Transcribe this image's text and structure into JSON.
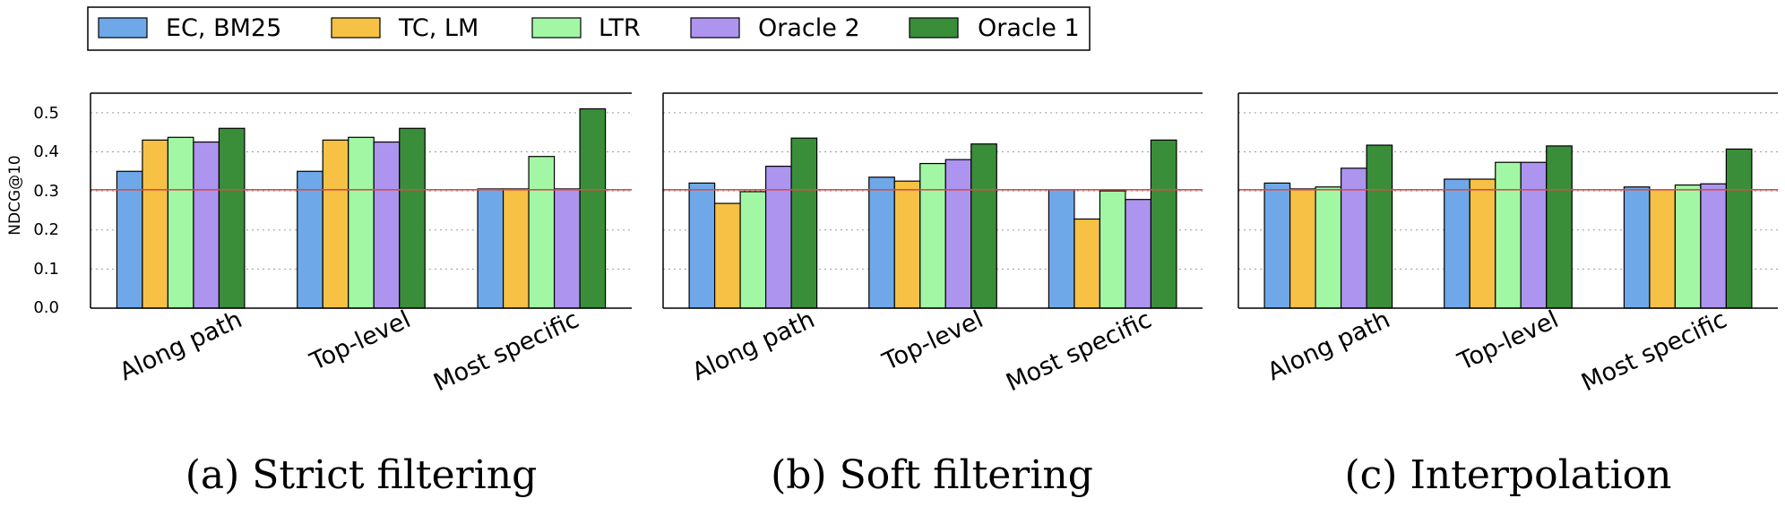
{
  "legend": [
    "EC, BM25",
    "TC, LM",
    "LTR",
    "Oracle 2",
    "Oracle 1"
  ],
  "colors": {
    "series": [
      "#6fa8e8",
      "#f6c144",
      "#a2f7a4",
      "#ad94ef",
      "#3a8e3a"
    ],
    "baseline": "#d84c4c",
    "grid": "#9a9a9a"
  },
  "chart_data": [
    {
      "type": "bar",
      "caption": "(a) Strict filtering",
      "ylabel": "NDCG@10",
      "categories": [
        "Along path",
        "Top-level",
        "Most specific"
      ],
      "series": [
        {
          "name": "EC, BM25",
          "values": [
            0.35,
            0.35,
            0.305
          ]
        },
        {
          "name": "TC, LM",
          "values": [
            0.43,
            0.43,
            0.305
          ]
        },
        {
          "name": "LTR",
          "values": [
            0.437,
            0.437,
            0.388
          ]
        },
        {
          "name": "Oracle 2",
          "values": [
            0.425,
            0.425,
            0.305
          ]
        },
        {
          "name": "Oracle 1",
          "values": [
            0.46,
            0.46,
            0.51
          ]
        }
      ],
      "baseline": 0.303,
      "ylim": [
        0,
        0.55
      ],
      "yticks": [
        "0.0",
        "0.1",
        "0.2",
        "0.3",
        "0.4",
        "0.5"
      ],
      "grid": true
    },
    {
      "type": "bar",
      "caption": "(b) Soft filtering",
      "ylabel": "",
      "categories": [
        "Along path",
        "Top-level",
        "Most specific"
      ],
      "series": [
        {
          "name": "EC, BM25",
          "values": [
            0.32,
            0.335,
            0.303
          ]
        },
        {
          "name": "TC, LM",
          "values": [
            0.268,
            0.325,
            0.228
          ]
        },
        {
          "name": "LTR",
          "values": [
            0.298,
            0.37,
            0.3
          ]
        },
        {
          "name": "Oracle 2",
          "values": [
            0.363,
            0.38,
            0.278
          ]
        },
        {
          "name": "Oracle 1",
          "values": [
            0.435,
            0.42,
            0.43
          ]
        }
      ],
      "baseline": 0.303,
      "ylim": [
        0,
        0.55
      ],
      "grid": true
    },
    {
      "type": "bar",
      "caption": "(c) Interpolation",
      "ylabel": "",
      "categories": [
        "Along path",
        "Top-level",
        "Most specific"
      ],
      "series": [
        {
          "name": "EC, BM25",
          "values": [
            0.32,
            0.33,
            0.31
          ]
        },
        {
          "name": "TC, LM",
          "values": [
            0.305,
            0.33,
            0.303
          ]
        },
        {
          "name": "LTR",
          "values": [
            0.31,
            0.373,
            0.315
          ]
        },
        {
          "name": "Oracle 2",
          "values": [
            0.358,
            0.373,
            0.318
          ]
        },
        {
          "name": "Oracle 1",
          "values": [
            0.417,
            0.415,
            0.407
          ]
        }
      ],
      "baseline": 0.303,
      "ylim": [
        0,
        0.55
      ],
      "grid": true
    }
  ]
}
